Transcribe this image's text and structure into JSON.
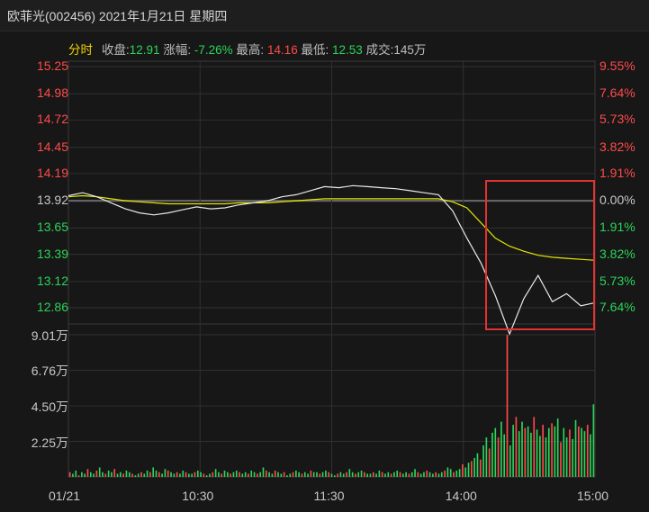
{
  "window": {
    "title": "欧菲光(002456) 2021年1月21日 星期四"
  },
  "stats": {
    "tab_label": "分时",
    "close_label": "收盘:",
    "close_value": "12.91",
    "change_label": "涨幅:",
    "change_value": "-7.26%",
    "high_label": "最高:",
    "high_value": "14.16",
    "low_label": "最低:",
    "low_value": "12.53",
    "volume_label": "成交:",
    "volume_value": "145万"
  },
  "colors": {
    "up": "#ff4a4a",
    "down": "#2bd45a",
    "avg_line": "#e6e600",
    "price_line": "#e8e8e8",
    "highlight": "#e23232"
  },
  "price_axis": {
    "labels": [
      "15.25",
      "14.98",
      "14.72",
      "14.45",
      "14.19",
      "13.92",
      "13.65",
      "13.39",
      "13.12",
      "12.86"
    ],
    "pct_labels": [
      "9.55%",
      "7.64%",
      "5.73%",
      "3.82%",
      "1.91%",
      "0.00%",
      "1.91%",
      "3.82%",
      "5.73%",
      "7.64%"
    ]
  },
  "volume_axis": {
    "labels": [
      "9.01万",
      "6.76万",
      "4.50万",
      "2.25万"
    ]
  },
  "time_axis": {
    "labels": [
      "01/21",
      "10:30",
      "11:30",
      "14:00",
      "15:00"
    ]
  },
  "chart_data": {
    "type": "line",
    "title": "欧菲光(002456) 2021年1月21日 星期四",
    "prev_close": 13.92,
    "ylim": [
      12.86,
      15.25
    ],
    "x_ticks": [
      "01/21",
      "10:30",
      "11:30",
      "14:00",
      "15:00"
    ],
    "series": [
      {
        "values": [
          13.97,
          14.0,
          13.96,
          13.9,
          13.84,
          13.8,
          13.78,
          13.8,
          13.83,
          13.86,
          13.84,
          13.85,
          13.88,
          13.9,
          13.92,
          13.96,
          13.98,
          14.02,
          14.06,
          14.05,
          14.07,
          14.06,
          14.05,
          14.04,
          14.02,
          14.0,
          13.98,
          13.82,
          13.55,
          13.3,
          12.98,
          12.6,
          12.95,
          13.18,
          12.92,
          13.0,
          12.88,
          12.91
        ]
      },
      {
        "values": [
          13.96,
          13.97,
          13.96,
          13.94,
          13.92,
          13.91,
          13.9,
          13.89,
          13.89,
          13.89,
          13.89,
          13.89,
          13.9,
          13.9,
          13.9,
          13.91,
          13.92,
          13.93,
          13.94,
          13.94,
          13.94,
          13.94,
          13.94,
          13.94,
          13.94,
          13.94,
          13.94,
          13.91,
          13.85,
          13.7,
          13.55,
          13.47,
          13.42,
          13.38,
          13.36,
          13.35,
          13.34,
          13.33
        ]
      }
    ],
    "volume": {
      "labels": [
        "9.01万",
        "6.76万",
        "4.50万",
        "2.25万"
      ],
      "ylim": [
        0,
        9.01
      ],
      "values": [
        0.3,
        0.2,
        0.4,
        0.1,
        0.3,
        0.2,
        0.5,
        0.3,
        0.2,
        0.4,
        0.6,
        0.3,
        0.2,
        0.4,
        0.3,
        0.5,
        0.2,
        0.3,
        0.2,
        0.4,
        0.3,
        0.2,
        0.1,
        0.2,
        0.3,
        0.2,
        0.4,
        0.3,
        0.6,
        0.4,
        0.3,
        0.2,
        0.5,
        0.4,
        0.3,
        0.2,
        0.3,
        0.2,
        0.4,
        0.3,
        0.2,
        0.2,
        0.3,
        0.4,
        0.3,
        0.2,
        0.1,
        0.2,
        0.3,
        0.5,
        0.3,
        0.2,
        0.4,
        0.3,
        0.2,
        0.3,
        0.4,
        0.3,
        0.2,
        0.3,
        0.2,
        0.4,
        0.3,
        0.2,
        0.3,
        0.6,
        0.4,
        0.3,
        0.2,
        0.4,
        0.3,
        0.2,
        0.3,
        0.1,
        0.2,
        0.3,
        0.4,
        0.3,
        0.2,
        0.3,
        0.2,
        0.4,
        0.3,
        0.3,
        0.2,
        0.3,
        0.4,
        0.3,
        0.2,
        0.1,
        0.2,
        0.3,
        0.2,
        0.3,
        0.5,
        0.3,
        0.2,
        0.3,
        0.4,
        0.3,
        0.2,
        0.2,
        0.3,
        0.2,
        0.4,
        0.3,
        0.2,
        0.3,
        0.2,
        0.3,
        0.4,
        0.3,
        0.2,
        0.3,
        0.2,
        0.3,
        0.5,
        0.3,
        0.2,
        0.3,
        0.4,
        0.3,
        0.2,
        0.3,
        0.2,
        0.3,
        0.4,
        0.6,
        0.5,
        0.3,
        0.4,
        0.5,
        0.8,
        0.6,
        0.9,
        1.0,
        1.2,
        1.5,
        1.1,
        2.0,
        2.5,
        1.8,
        2.8,
        3.1,
        2.5,
        3.5,
        2.7,
        9.01,
        2.0,
        3.3,
        3.8,
        2.9,
        3.5,
        3.1,
        3.2,
        2.8,
        3.8,
        3.0,
        2.6,
        3.3,
        2.5,
        3.1,
        3.4,
        3.2,
        3.7,
        2.2,
        3.1,
        2.5,
        3.0,
        2.4,
        3.6,
        3.2,
        3.1,
        2.9,
        3.3,
        2.7,
        4.6
      ]
    }
  }
}
